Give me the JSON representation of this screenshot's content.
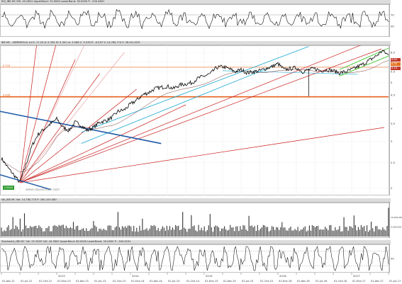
{
  "panels": {
    "rsi": {
      "header": "RSI_IBE.MC  RSI: 45.0831  UpperBand: 70.0000  LowerBand: 30.0000  P: -230.4847"
    },
    "price": {
      "header": "IBE.MC - IBERDROLA  1d  H: 17.25  A: 5.334  M: 5.301  m: 5.286  C: 5.335  P: -0.547  V: 14,780,774  F: 26-04-2015"
    },
    "volume": {
      "header": "Vol_IBE.MC  Vol: 14,780,774  P: 260.105.080"
    },
    "stochastic": {
      "header": "Stochastic_IBE.MC  %K: 25.3349  %D: 44.5600  UpperBand: 80.0000  LowerBand: 20.0000  P: -343.4231"
    }
  },
  "watermark": "www.visualchart.com",
  "level_labels": {
    "upper": "5.719",
    "lower": "4.426"
  },
  "side_value_tags": [
    {
      "value": "6.60",
      "color": "#c0392b"
    },
    {
      "value": "6.34",
      "color": "#e2701b"
    },
    {
      "value": "6.16",
      "color": "#c0392b"
    }
  ],
  "start_badge": "2.5845",
  "colors": {
    "price": "#111111",
    "fan_red": "#c81e1e",
    "blue": "#1e5aa8",
    "cyan": "#19a8d0",
    "orange": "#e8601c",
    "green": "#39c728",
    "volume": "#333333",
    "oscillator": "#111111"
  },
  "chart_data": [
    {
      "type": "line",
      "title": "IBE.MC - IBERDROLA",
      "x_axis_labels": [
        "01-Abr-12",
        "01-Jul-12",
        "01-Oct-12",
        "01-Ene-13",
        "01-Abr-13",
        "01-Jul-13",
        "01-Oct-13",
        "01-Ene-14",
        "01-Abr-14",
        "01-Jul-14",
        "01-Oct-14",
        "01-Ene-15",
        "01-Abr-15",
        "01-Jul-15",
        "01-Oct-15",
        "01-Ene-16",
        "01-Abr-16",
        "01-Jul-16",
        "01-Oct-16",
        "01-Ene-17",
        "01-Abr-17",
        "01-Jul-17"
      ],
      "year_labels": [
        "2013",
        "2014",
        "2015",
        "2016",
        "2017"
      ],
      "y_ticks": [
        "2",
        "2.5",
        "3",
        "3.5",
        "4",
        "4.5",
        "5",
        "5.5",
        "6",
        "6.5"
      ],
      "ylim": [
        1.95,
        6.75
      ],
      "y_scale": "log",
      "horizontal_levels": [
        5.719,
        4.426
      ],
      "series": [
        {
          "name": "IBE.MC",
          "x": [
            "2012-04",
            "2012-05",
            "2012-06",
            "2012-07",
            "2012-08",
            "2012-09",
            "2012-10",
            "2012-11",
            "2012-12",
            "2013-01",
            "2013-02",
            "2013-03",
            "2013-04",
            "2013-05",
            "2013-06",
            "2013-07",
            "2013-08",
            "2013-09",
            "2013-10",
            "2013-11",
            "2013-12",
            "2014-01",
            "2014-02",
            "2014-03",
            "2014-04",
            "2014-05",
            "2014-06",
            "2014-07",
            "2014-08",
            "2014-09",
            "2014-10",
            "2014-11",
            "2014-12",
            "2015-01",
            "2015-02",
            "2015-03",
            "2015-04",
            "2015-05",
            "2015-06",
            "2015-07",
            "2015-08",
            "2015-09",
            "2015-10",
            "2015-11",
            "2015-12",
            "2016-01",
            "2016-02",
            "2016-03",
            "2016-04",
            "2016-05",
            "2016-06",
            "2016-07",
            "2016-08",
            "2016-09",
            "2016-10",
            "2016-11",
            "2016-12",
            "2017-01",
            "2017-02",
            "2017-03",
            "2017-04",
            "2017-05",
            "2017-06",
            "2017-07"
          ],
          "values": [
            2.6,
            2.4,
            2.25,
            2.1,
            2.45,
            2.9,
            3.2,
            3.35,
            3.5,
            3.65,
            3.4,
            3.3,
            3.55,
            3.45,
            3.3,
            3.4,
            3.55,
            3.6,
            3.7,
            3.9,
            3.95,
            4.15,
            4.3,
            4.5,
            4.6,
            4.75,
            4.8,
            4.85,
            4.75,
            4.9,
            4.95,
            5.0,
            5.2,
            5.3,
            5.4,
            5.7,
            5.75,
            5.65,
            5.5,
            5.6,
            5.45,
            5.5,
            5.55,
            5.65,
            5.75,
            5.9,
            5.6,
            5.65,
            5.7,
            5.5,
            5.6,
            5.65,
            5.55,
            5.6,
            5.55,
            5.45,
            5.5,
            5.6,
            5.75,
            5.9,
            6.1,
            6.3,
            6.6,
            6.35
          ]
        }
      ]
    },
    {
      "type": "line",
      "title": "RSI",
      "ylim": [
        0,
        100
      ],
      "y_ticks": [
        "30",
        "70"
      ],
      "upper_band": 70,
      "lower_band": 30,
      "current_value": 45.0831
    },
    {
      "type": "bar",
      "title": "Volume",
      "y_ticks": [
        "10,000,000",
        "5,000,000"
      ],
      "current_value": 14780774
    },
    {
      "type": "line",
      "title": "Stochastic",
      "ylim": [
        0,
        100
      ],
      "y_ticks": [
        "50"
      ],
      "upper_band": 80,
      "lower_band": 20,
      "series": [
        {
          "name": "%K",
          "current_value": 25.3349
        },
        {
          "name": "%D",
          "current_value": 44.56
        }
      ]
    }
  ]
}
